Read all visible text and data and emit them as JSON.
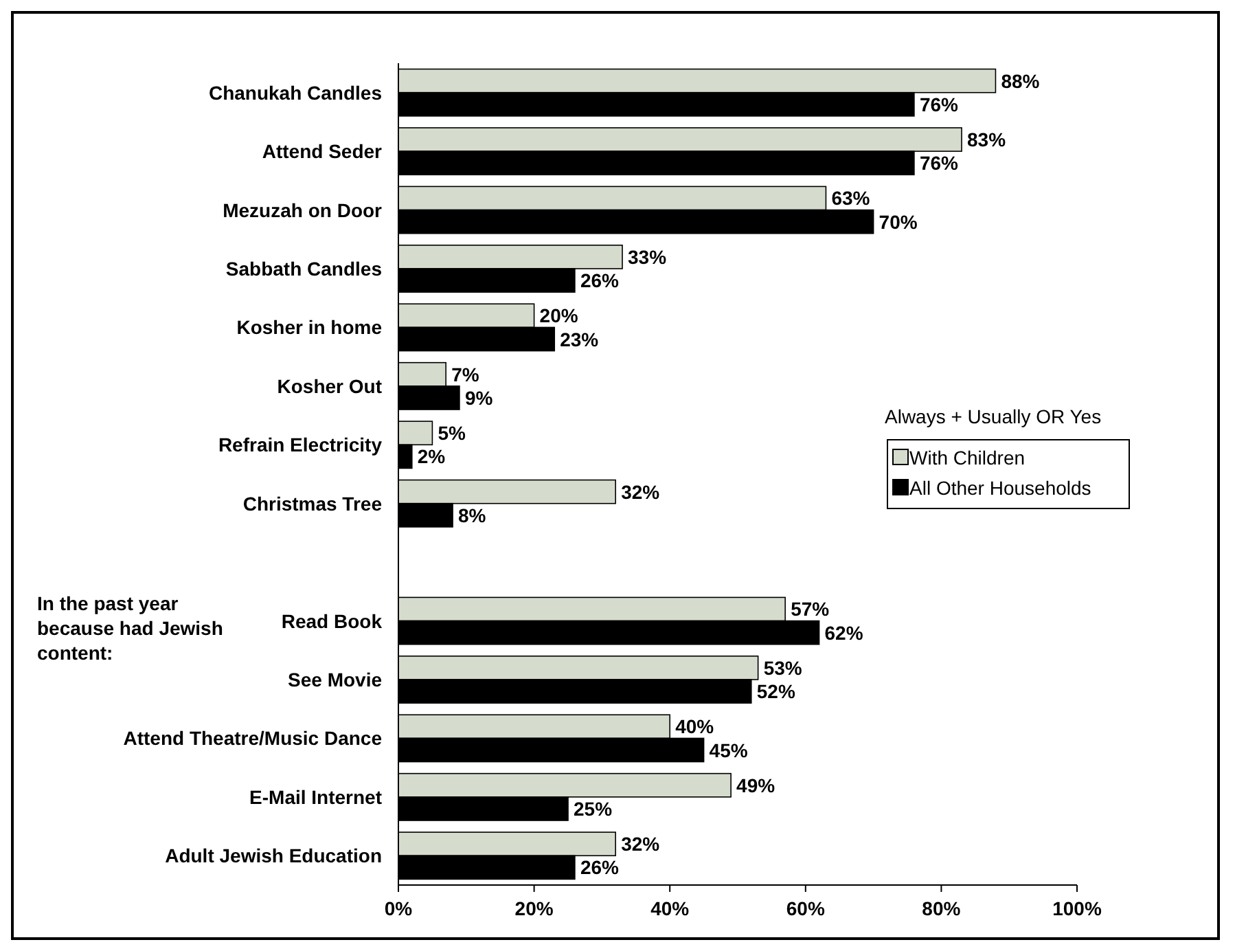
{
  "chart_data": {
    "type": "bar",
    "orientation": "horizontal",
    "categories": [
      "Chanukah Candles",
      "Attend Seder",
      "Mezuzah on Door",
      "Sabbath Candles",
      "Kosher in home",
      "Kosher Out",
      "Refrain Electricity",
      "Christmas Tree",
      null,
      "Read Book",
      "See Movie",
      "Attend Theatre/Music Dance",
      "E-Mail Internet",
      "Adult Jewish Education"
    ],
    "series": [
      {
        "name": "With Children",
        "color": "#d6dccd",
        "values": [
          88,
          83,
          63,
          33,
          20,
          7,
          5,
          32,
          null,
          57,
          53,
          40,
          49,
          32
        ],
        "value_labels": [
          "88%",
          "83%",
          "63%",
          "33%",
          "20%",
          "7%",
          "5%",
          "32%",
          null,
          "57%",
          "53%",
          "40%",
          "49%",
          "32%"
        ]
      },
      {
        "name": "All Other Households",
        "color": "#000000",
        "values": [
          76,
          76,
          70,
          26,
          23,
          9,
          2,
          8,
          null,
          62,
          52,
          45,
          25,
          26
        ],
        "value_labels": [
          "76%",
          "76%",
          "70%",
          "26%",
          "23%",
          "9%",
          "2%",
          "8%",
          null,
          "62%",
          "52%",
          "45%",
          "25%",
          "26%"
        ]
      }
    ],
    "xlim": [
      0,
      100
    ],
    "xticks": [
      {
        "value": 0,
        "label": "0%"
      },
      {
        "value": 20,
        "label": "20%"
      },
      {
        "value": 40,
        "label": "40%"
      },
      {
        "value": 60,
        "label": "60%"
      },
      {
        "value": 80,
        "label": "80%"
      },
      {
        "value": 100,
        "label": "100%"
      }
    ],
    "legend": "right",
    "legend_title": "Always + Usually OR Yes",
    "grid": false,
    "annotations": [
      "In the past year because had Jewish content:"
    ]
  }
}
